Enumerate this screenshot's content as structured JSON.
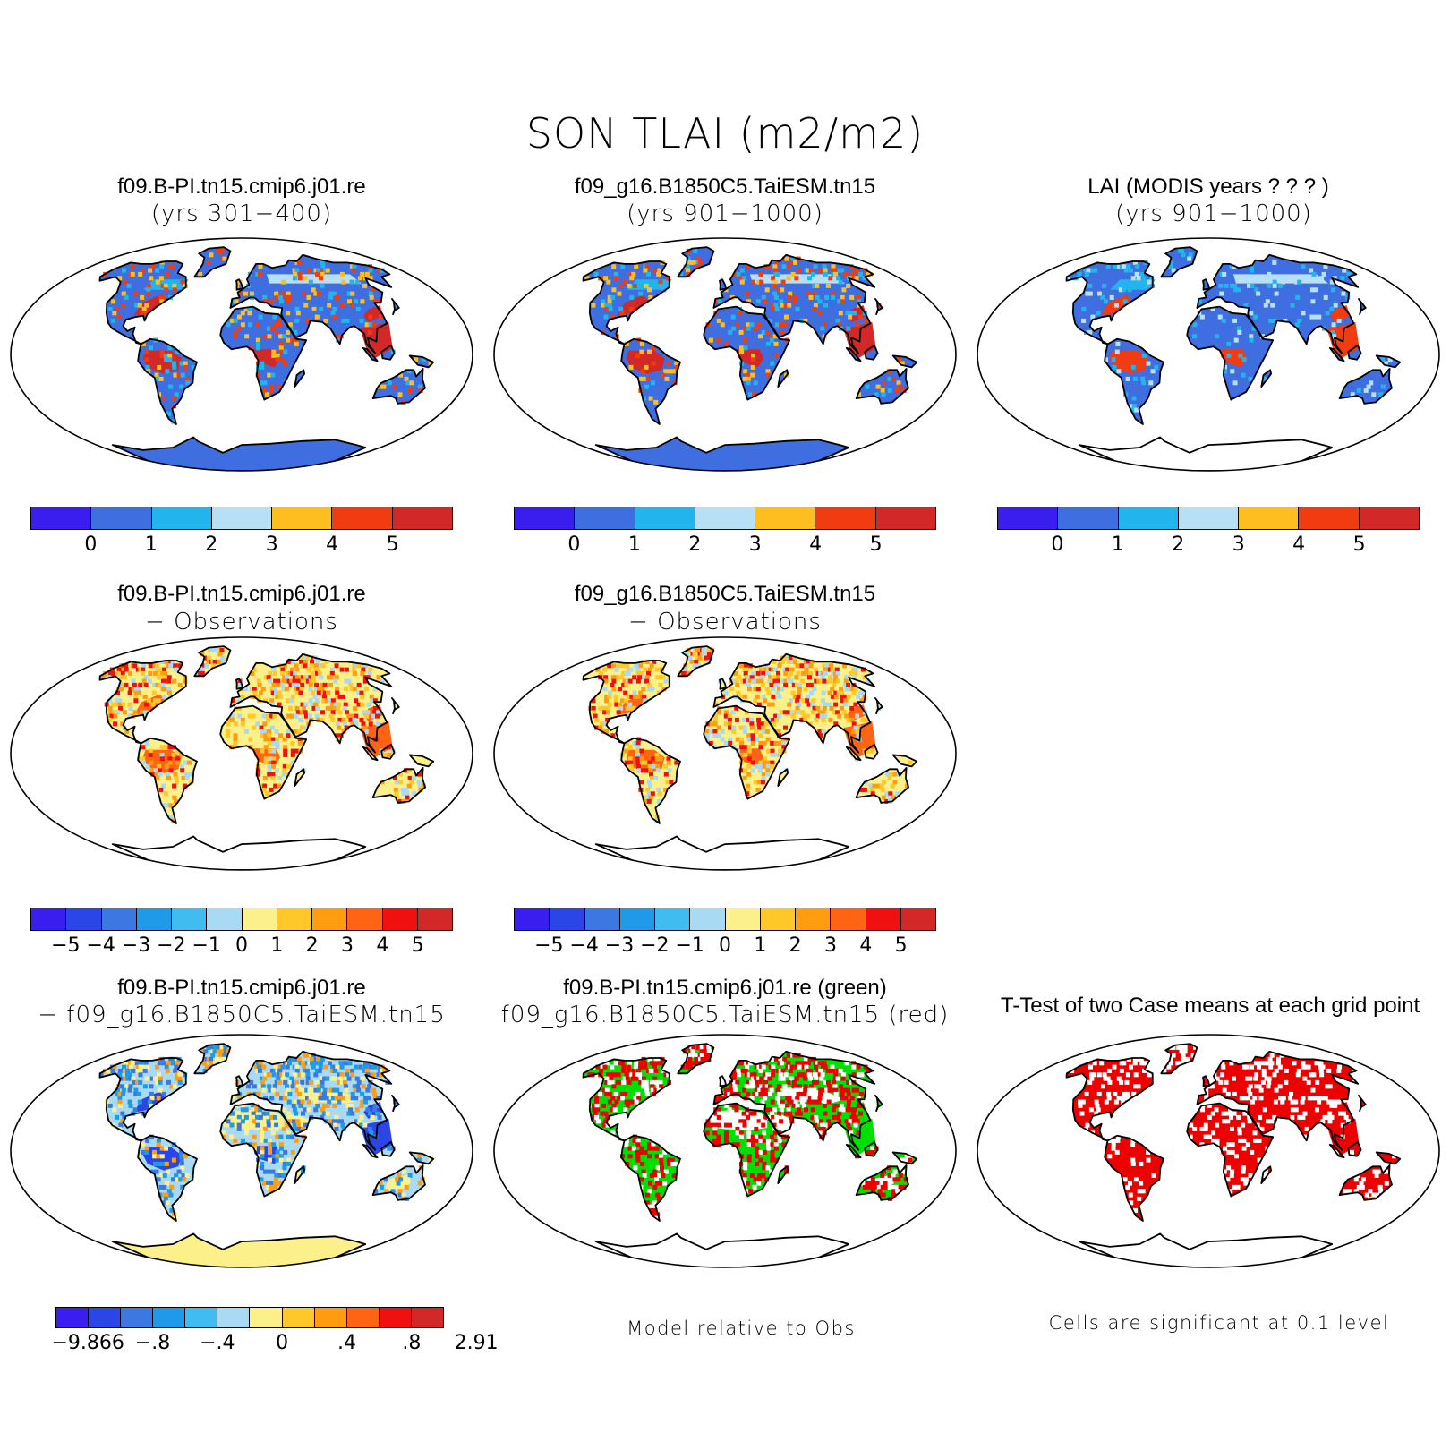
{
  "title": "SON TLAI (m2/m2)",
  "colors": {
    "abs_scale": [
      "#3a1ef0",
      "#3e6ee0",
      "#22b4ec",
      "#b8e0f4",
      "#ffbe20",
      "#f03c10",
      "#d22828"
    ],
    "diff_scale": [
      "#3a1ef0",
      "#2a46e6",
      "#3c78e2",
      "#1e9ae8",
      "#40bcf0",
      "#a8daf4",
      "#fcf08a",
      "#ffc828",
      "#ff9c10",
      "#ff6414",
      "#f01010",
      "#d22828"
    ],
    "sig_model1": "#00e000",
    "sig_model2": "#ee0000",
    "ttest": "#ee0000"
  },
  "panels": [
    {
      "line1": "f09.B-PI.tn15.cmip6.j01.re",
      "line2": "(yrs 301−400)",
      "scheme": "abs1"
    },
    {
      "line1": "f09_g16.B1850C5.TaiESM.tn15",
      "line2": "(yrs 901−1000)",
      "scheme": "abs2"
    },
    {
      "line1": "LAI (MODIS years ? ? ? )",
      "line2": "(yrs 901−1000)",
      "scheme": "obs"
    },
    {
      "line1": "f09.B-PI.tn15.cmip6.j01.re",
      "line2": "− Observations",
      "scheme": "diff1"
    },
    {
      "line1": "f09_g16.B1850C5.TaiESM.tn15",
      "line2": "− Observations",
      "scheme": "diff2"
    },
    {
      "line1": "f09.B-PI.tn15.cmip6.j01.re",
      "line2": "− f09_g16.B1850C5.TaiESM.tn15",
      "scheme": "diff3"
    },
    {
      "line1": "f09.B-PI.tn15.cmip6.j01.re (green)",
      "line2": "f09_g16.B1850C5.TaiESM.tn15 (red)",
      "scheme": "sig"
    },
    {
      "line1": "T-Test of two Case means at each grid point",
      "line2": "",
      "scheme": "ttest"
    }
  ],
  "colorbars": {
    "abs_ticks": [
      "0",
      "1",
      "2",
      "3",
      "4",
      "5"
    ],
    "diff_ticks": [
      "−5",
      "−4",
      "−3",
      "−2",
      "−1",
      "0",
      "1",
      "2",
      "3",
      "4",
      "5"
    ],
    "diff3_ticks": [
      "−9.866",
      "−.8",
      "−.4",
      "0",
      ".4",
      ".8",
      "2.91"
    ]
  },
  "notes": {
    "sig": "Model relative to Obs",
    "ttest": "Cells are significant at 0.1 level"
  }
}
